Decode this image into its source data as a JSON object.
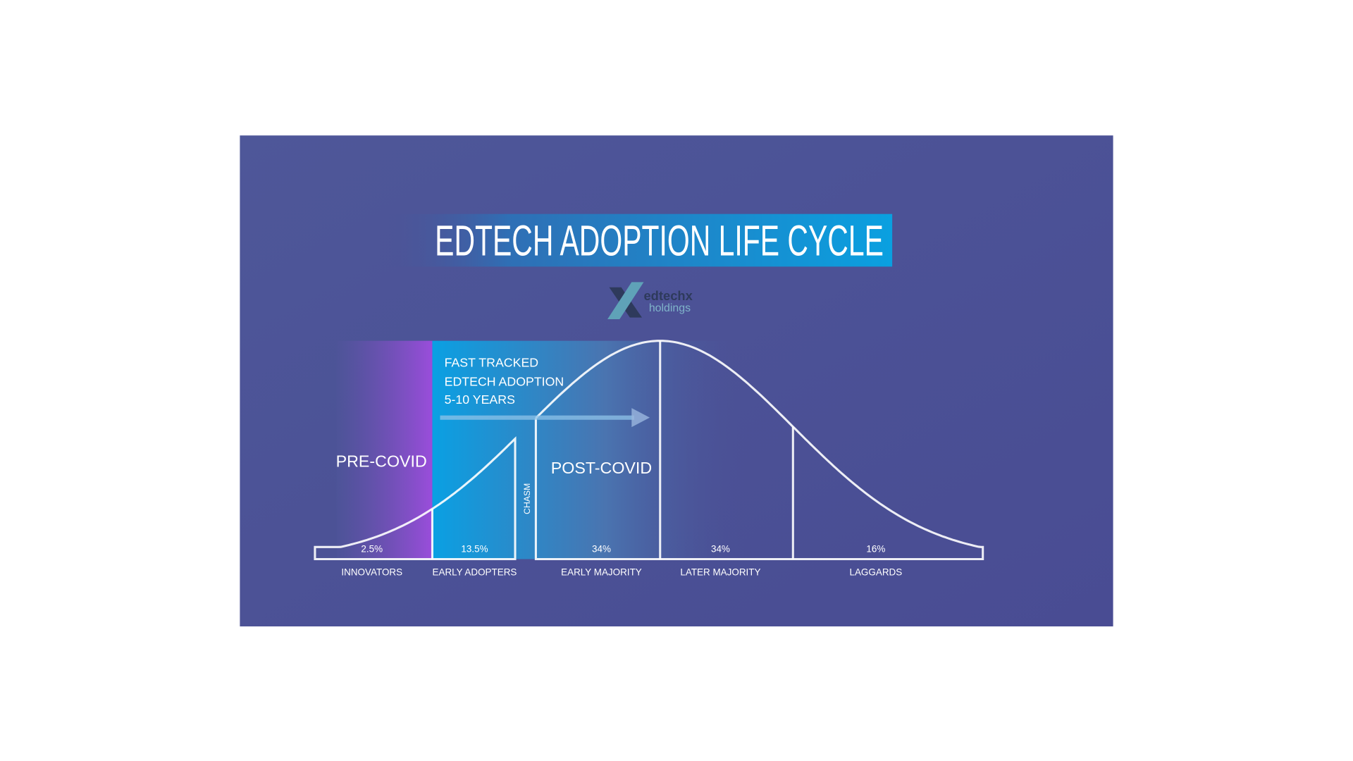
{
  "title": "EDTECH ADOPTION LIFE CYCLE",
  "logo": {
    "line1": "edtechx",
    "line2": "holdings"
  },
  "annotation": {
    "lines": [
      "FAST TRACKED",
      "EDTECH ADOPTION",
      "5-10 YEARS"
    ]
  },
  "phases": {
    "pre": "PRE-COVID",
    "post": "POST-COVID",
    "chasm": "CHASM"
  },
  "colors": {
    "background": "#4b5197",
    "title_band": "#0e9ddc",
    "pre_covid": "#9a4fd8",
    "post_covid": "#0f9be0",
    "curve": "#ffffff"
  },
  "chart_data": {
    "type": "area",
    "distribution": "normal",
    "categories": [
      "INNOVATORS",
      "EARLY ADOPTERS",
      "EARLY MAJORITY",
      "LATER MAJORITY",
      "LAGGARDS"
    ],
    "values": [
      2.5,
      13.5,
      34,
      34,
      16
    ],
    "value_labels": [
      "2.5%",
      "13.5%",
      "34%",
      "34%",
      "16%"
    ]
  }
}
